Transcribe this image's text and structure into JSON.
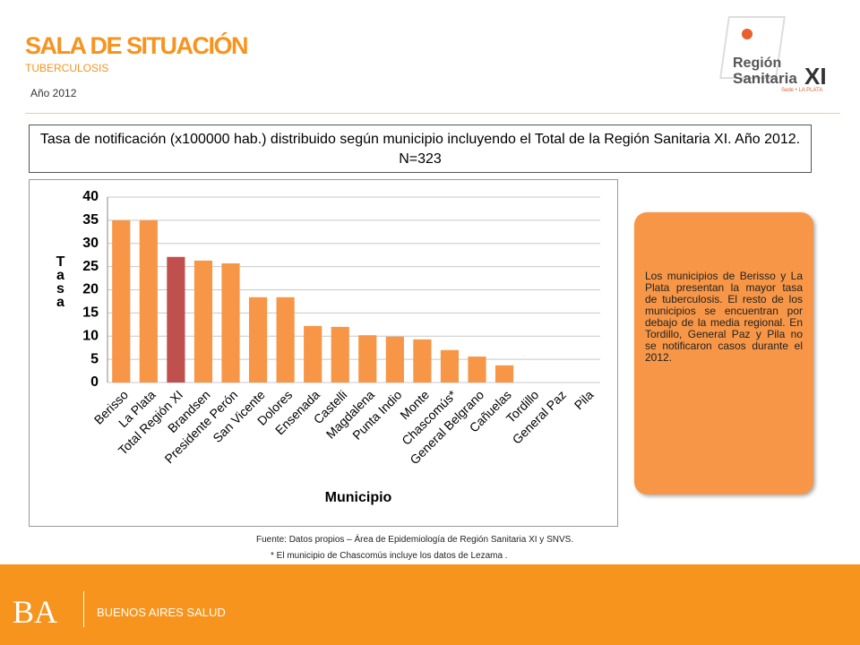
{
  "header": {
    "title": "SALA DE SITUACIÓN",
    "subtitle": "TUBERCULOSIS",
    "year": "Año 2012"
  },
  "logo": {
    "line1": "Región",
    "line2": "Sanitaria",
    "line3": "XI",
    "seat": "Sede • LA PLATA"
  },
  "chart_data": {
    "type": "bar",
    "title": "Tasa de notificación (x100000 hab.) distribuido según municipio incluyendo el Total de la  Región Sanitaria XI. Año 2012. N=323",
    "x_label": "Municipio",
    "y_label": "Tasa",
    "categories": [
      "Berisso",
      "La Plata",
      "Total Región XI",
      "Brandsen",
      "Presidente Perón",
      "San Vicente",
      "Dolores",
      "Ensenada",
      "Castelli",
      "Magdalena",
      "Punta Indio",
      "Monte",
      "Chascomús*",
      "General Belgrano",
      "Cañuelas",
      "Tordillo",
      "General Paz",
      "Pila"
    ],
    "values": [
      35,
      35,
      27.1,
      26.3,
      25.7,
      18.4,
      18.4,
      12.2,
      12.0,
      10.2,
      9.9,
      9.3,
      7.0,
      5.6,
      3.7,
      0,
      0,
      0
    ],
    "colors": [
      "#f79646",
      "#f79646",
      "#c0504d",
      "#f79646",
      "#f79646",
      "#f79646",
      "#f79646",
      "#f79646",
      "#f79646",
      "#f79646",
      "#f79646",
      "#f79646",
      "#f79646",
      "#f79646",
      "#f79646",
      "#f79646",
      "#f79646",
      "#f79646"
    ],
    "ylim": [
      0,
      40
    ],
    "yticks": [
      0,
      5,
      10,
      15,
      20,
      25,
      30,
      35,
      40
    ],
    "grid": true
  },
  "note": "Los municipios de Berisso y La Plata presentan la mayor tasa de tuberculosis. El resto de los municipios se encuentran por debajo de la media regional. En Tordillo, General Paz y Pila no se notificaron casos durante el 2012.",
  "source": "Fuente: Datos propios – Área de Epidemiología de Región Sanitaria XI y SNVS.",
  "footnote": "* El municipio de Chascomús incluye los datos de Lezama .",
  "footer": {
    "brand": "BA",
    "name": "BUENOS AIRES SALUD"
  }
}
